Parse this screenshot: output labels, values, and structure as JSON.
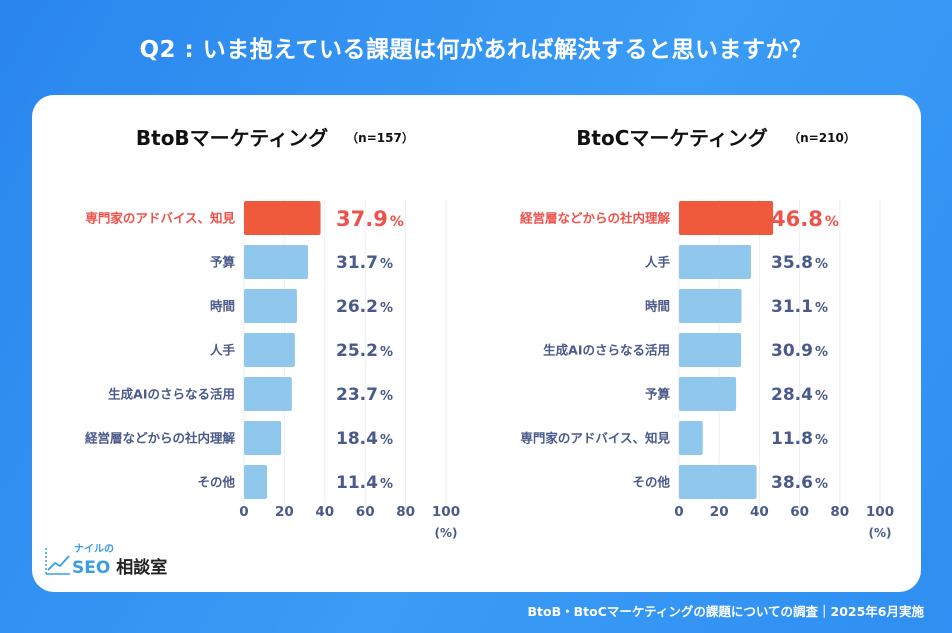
{
  "title": "Q2 : いま抱えている課題は何があれば解決すると思いますか？",
  "footer": "BtoB・BtoCマーケティングの課題についての調査｜2025年6月実施",
  "logo": {
    "small": "ナイルの",
    "seo": "SEO",
    "rest": "相談室"
  },
  "colors": {
    "highlight": "#ef5a3d",
    "bar": "#8fc8ec",
    "highlight_text": "#f0514a",
    "value_text": "#4a5a8a",
    "label_text": "#4a5a8a"
  },
  "chart_data": [
    {
      "type": "bar",
      "orientation": "horizontal",
      "title": "BtoBマーケティング",
      "n_label": "（n=157）",
      "categories": [
        "専門家のアドバイス、知見",
        "予算",
        "時間",
        "人手",
        "生成AIのさらなる活用",
        "経営層などからの社内理解",
        "その他"
      ],
      "values": [
        37.9,
        31.7,
        26.2,
        25.2,
        23.7,
        18.4,
        11.4
      ],
      "highlight_index": 0,
      "xlim": [
        0,
        100
      ],
      "xticks": [
        "0",
        "20",
        "40",
        "60",
        "80",
        "100"
      ],
      "xunit": "(%)",
      "value_suffix": "%",
      "grid": true
    },
    {
      "type": "bar",
      "orientation": "horizontal",
      "title": "BtoCマーケティング",
      "n_label": "（n=210）",
      "categories": [
        "経営層などからの社内理解",
        "人手",
        "時間",
        "生成AIのさらなる活用",
        "予算",
        "専門家のアドバイス、知見",
        "その他"
      ],
      "values": [
        46.8,
        35.8,
        31.1,
        30.9,
        28.4,
        11.8,
        38.6
      ],
      "highlight_index": 0,
      "xlim": [
        0,
        100
      ],
      "xticks": [
        "0",
        "20",
        "40",
        "60",
        "80",
        "100"
      ],
      "xunit": "(%)",
      "value_suffix": "%",
      "grid": true
    }
  ]
}
